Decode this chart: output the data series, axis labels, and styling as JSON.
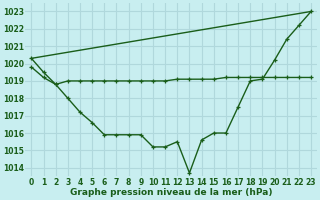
{
  "title": "Graphe pression niveau de la mer (hPa)",
  "background_color": "#c8eef0",
  "grid_color": "#b0d8dc",
  "line_color": "#1a5e1a",
  "xlim": [
    -0.5,
    23.5
  ],
  "ylim": [
    1013.5,
    1023.5
  ],
  "yticks": [
    1014,
    1015,
    1016,
    1017,
    1018,
    1019,
    1020,
    1021,
    1022,
    1023
  ],
  "xticks": [
    0,
    1,
    2,
    3,
    4,
    5,
    6,
    7,
    8,
    9,
    10,
    11,
    12,
    13,
    14,
    15,
    16,
    17,
    18,
    19,
    20,
    21,
    22,
    23
  ],
  "line1_x": [
    0,
    1,
    2,
    3,
    4,
    5,
    6,
    7,
    8,
    9,
    10,
    11,
    12,
    13,
    14,
    15,
    16,
    17,
    18,
    19,
    20,
    21,
    22,
    23
  ],
  "line1_y": [
    1020.3,
    1019.5,
    1018.8,
    1018.0,
    1017.2,
    1016.6,
    1015.9,
    1015.9,
    1015.9,
    1015.9,
    1015.2,
    1015.2,
    1015.5,
    1013.7,
    1015.6,
    1016.0,
    1016.0,
    1017.5,
    1019.0,
    1019.1,
    1020.2,
    1021.4,
    1022.2,
    1023.0
  ],
  "line2_x": [
    0,
    1,
    2,
    3,
    4,
    5,
    6,
    7,
    8,
    9,
    10,
    11,
    12,
    13,
    14,
    15,
    16,
    17,
    18,
    19,
    20,
    21,
    22,
    23
  ],
  "line2_y": [
    1019.8,
    1019.2,
    1018.8,
    1019.0,
    1019.0,
    1019.0,
    1019.0,
    1019.0,
    1019.0,
    1019.0,
    1019.0,
    1019.0,
    1019.1,
    1019.1,
    1019.1,
    1019.1,
    1019.2,
    1019.2,
    1019.2,
    1019.2,
    1019.2,
    1019.2,
    1019.2,
    1019.2
  ],
  "line3_x": [
    0,
    23
  ],
  "line3_y": [
    1020.3,
    1023.0
  ],
  "tick_fontsize": 5.5,
  "label_fontsize": 6.5
}
